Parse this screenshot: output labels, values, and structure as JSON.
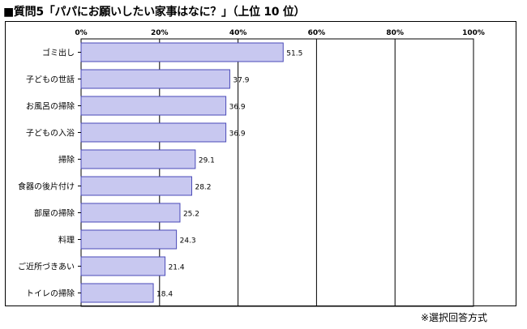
{
  "header": {
    "title": "■質問5「パパにお願いしたい家事はなに？」（上位 10 位）"
  },
  "footer": {
    "note": "※選択回答方式"
  },
  "colors": {
    "bar_fill": "#c8c8f0",
    "bar_stroke": "#4a4ab8",
    "grid": "#000000"
  },
  "chart_data": {
    "type": "bar",
    "orientation": "horizontal",
    "title": "■質問5「パパにお願いしたい家事はなに？」（上位 10 位）",
    "categories": [
      "ゴミ出し",
      "子どもの世話",
      "お風呂の掃除",
      "子どもの入浴",
      "掃除",
      "食器の後片付け",
      "部屋の掃除",
      "料理",
      "ご近所づきあい",
      "トイレの掃除"
    ],
    "values": [
      51.5,
      37.9,
      36.9,
      36.9,
      29.1,
      28.2,
      25.2,
      24.3,
      21.4,
      18.4
    ],
    "xlim": [
      0,
      100
    ],
    "xticks": [
      "0%",
      "20%",
      "40%",
      "60%",
      "80%",
      "100%"
    ],
    "grid": true,
    "legend": "none"
  }
}
